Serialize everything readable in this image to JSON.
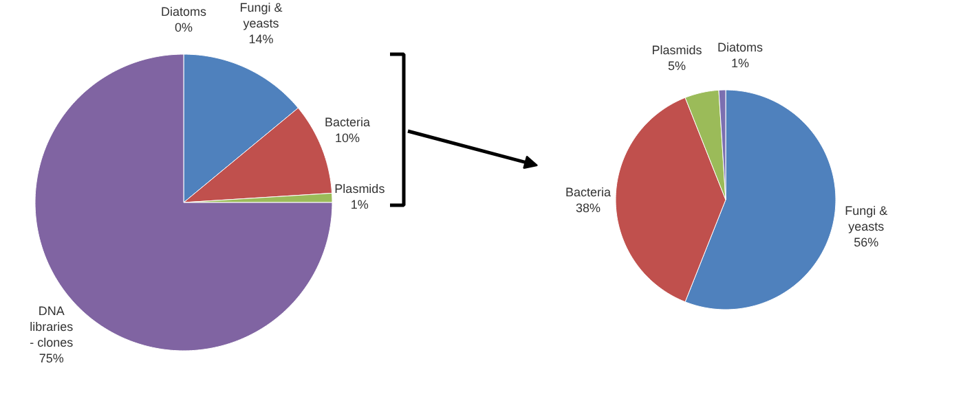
{
  "chart_data": [
    {
      "type": "pie",
      "categories": [
        "Diatoms",
        "Fungi & yeasts",
        "Bacteria",
        "Plasmids",
        "DNA libraries - clones"
      ],
      "values": [
        0,
        14,
        10,
        1,
        75
      ],
      "value_labels": [
        "0%",
        "14%",
        "10%",
        "1%",
        "75%"
      ],
      "colors": [
        "#7b6fb0",
        "#4f81bd",
        "#c0504d",
        "#9bbb59",
        "#8064a2"
      ]
    },
    {
      "type": "pie",
      "categories": [
        "Fungi & yeasts",
        "Bacteria",
        "Plasmids",
        "Diatoms"
      ],
      "values": [
        56,
        38,
        5,
        1
      ],
      "value_labels": [
        "56%",
        "38%",
        "5%",
        "1%"
      ],
      "colors": [
        "#4f81bd",
        "#c0504d",
        "#9bbb59",
        "#7b6fb0"
      ]
    }
  ]
}
